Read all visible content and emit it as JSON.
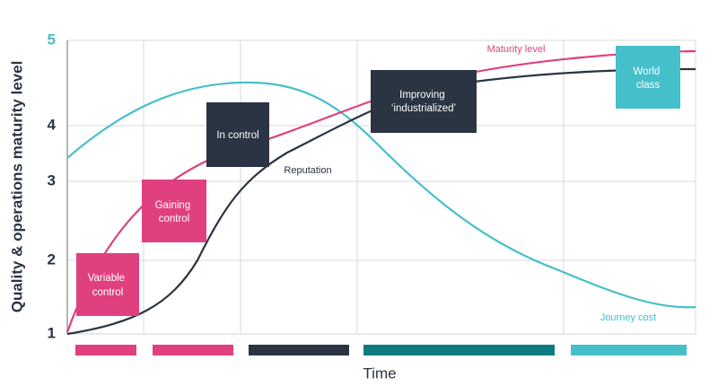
{
  "y_axis": {
    "label": "Quality & operations maturity level",
    "ticks": [
      "1",
      "2",
      "3",
      "4",
      "5"
    ]
  },
  "x_axis": {
    "label": "Time"
  },
  "stages": [
    {
      "lines": [
        "Variable",
        "control"
      ]
    },
    {
      "lines": [
        "Gaining",
        "control"
      ]
    },
    {
      "lines": [
        "In control"
      ]
    },
    {
      "lines": [
        "Improving",
        "‘industrialized’"
      ]
    },
    {
      "lines": [
        "World",
        "class"
      ]
    }
  ],
  "curves": [
    {
      "label": "Maturity level"
    },
    {
      "label": "Reputation"
    },
    {
      "label": "Journey cost"
    }
  ]
}
